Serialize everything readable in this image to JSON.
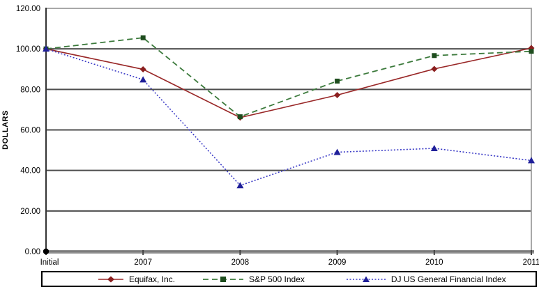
{
  "chart_data": {
    "type": "line",
    "title": "",
    "ylabel": "DOLLARS",
    "xlabel": "",
    "categories": [
      "Initial",
      "2007",
      "2008",
      "2009",
      "2010",
      "2011"
    ],
    "y_ticks": [
      "0.00",
      "20.00",
      "40.00",
      "60.00",
      "80.00",
      "100.00",
      "120.00"
    ],
    "ylim": [
      0,
      120
    ],
    "grid": "horizontal",
    "legend_position": "bottom",
    "series": [
      {
        "key": "equifax",
        "name": "Equifax, Inc.",
        "values": [
          100.0,
          89.9,
          66.1,
          77.2,
          90.1,
          100.4
        ],
        "color": "#992727",
        "marker": "diamond",
        "marker_color": "#8b1f1f",
        "line_style": "solid"
      },
      {
        "key": "sp500",
        "name": "S&P 500 Index",
        "values": [
          100.0,
          105.5,
          66.5,
          84.1,
          96.7,
          98.8
        ],
        "color": "#3c7a3c",
        "marker": "square",
        "marker_color": "#1e4d1e",
        "line_style": "dashed"
      },
      {
        "key": "dj-us-general-financial",
        "name": "DJ US General Financial Index",
        "values": [
          100.0,
          84.8,
          32.6,
          49.0,
          50.9,
          44.9
        ],
        "color": "#3939c6",
        "marker": "triangle",
        "marker_color": "#1f1f99",
        "line_style": "dotted"
      }
    ],
    "origin_marker": {
      "category": "Initial",
      "value": 0.0,
      "color": "#000000"
    },
    "colors": {
      "gridline": "#4d4d4d",
      "plot_border": "#a8a8a8",
      "x_axis": "#8f8f8f",
      "y_axis": "#333333",
      "tick": "#444444",
      "text": "#000000"
    }
  }
}
